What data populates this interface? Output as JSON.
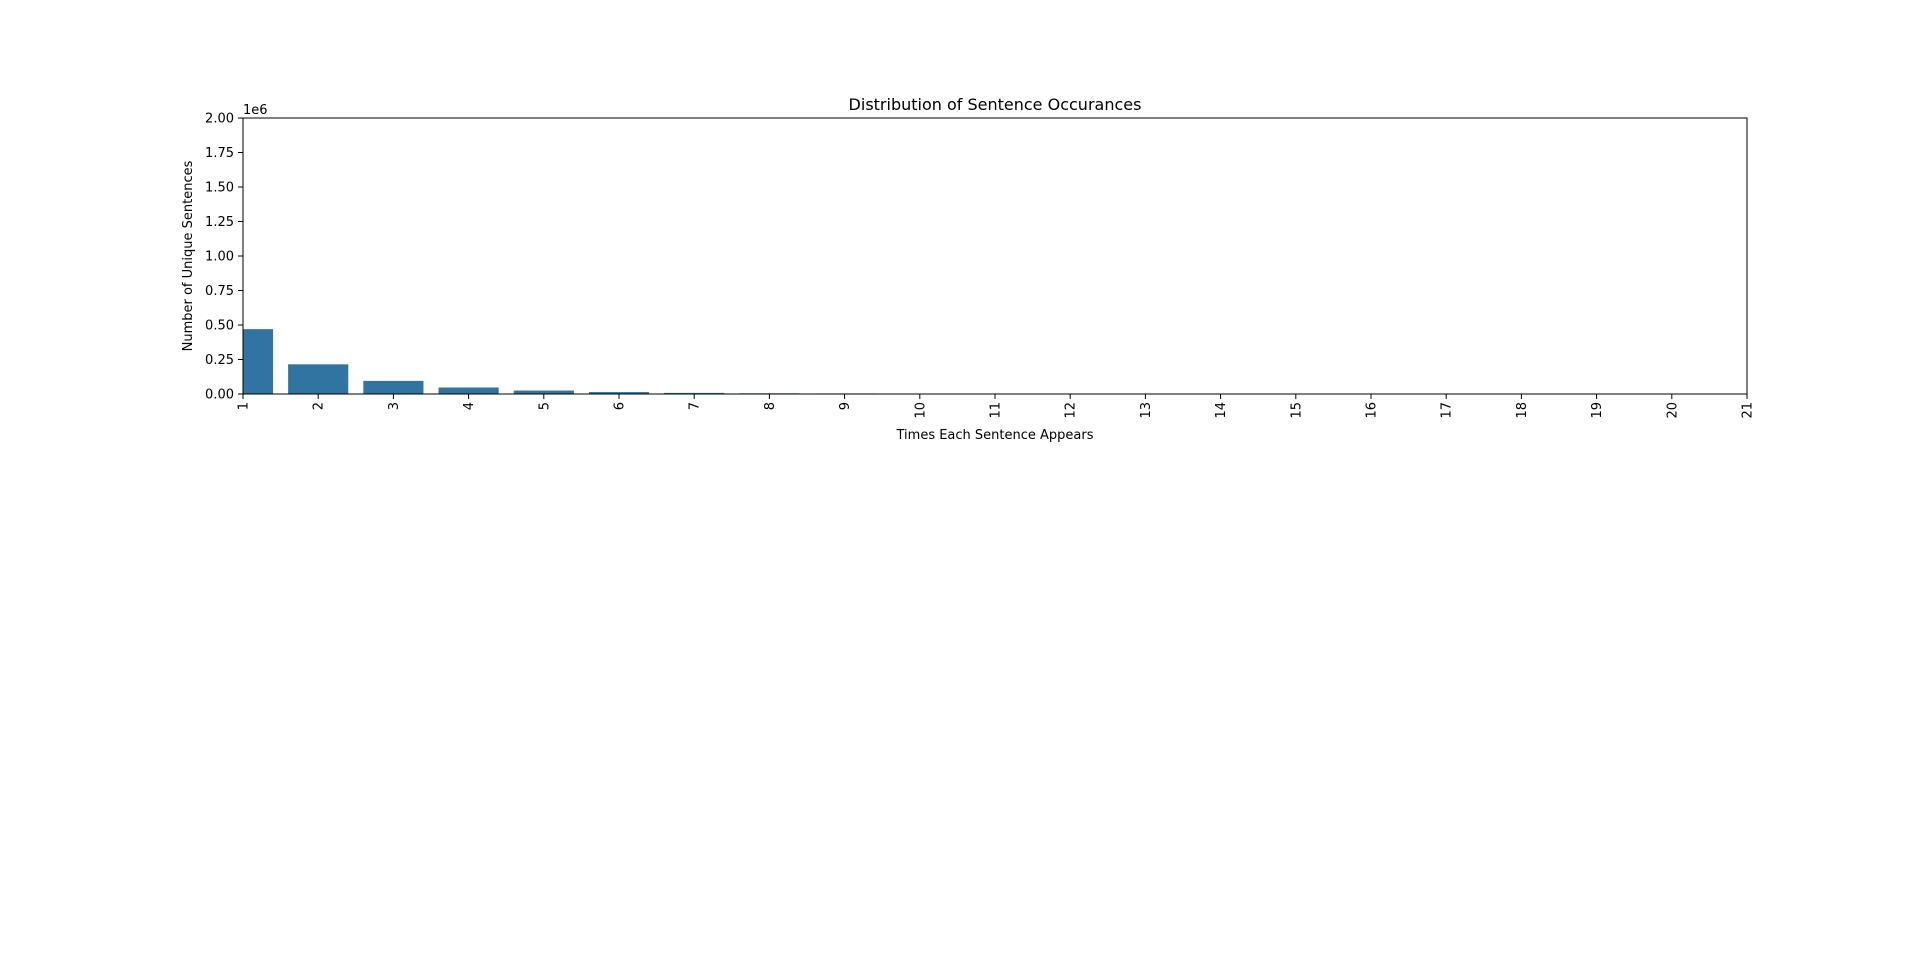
{
  "chart_data": {
    "type": "bar",
    "title": "Distribution of Sentence Occurances",
    "xlabel": "Times Each Sentence Appears",
    "ylabel": "Number of Unique Sentences",
    "y_offset_label": "1e6",
    "ylim": [
      0,
      2000000
    ],
    "y_ticks": [
      0,
      250000,
      500000,
      750000,
      1000000,
      1250000,
      1500000,
      1750000,
      2000000
    ],
    "y_tick_labels": [
      "0.00",
      "0.25",
      "0.50",
      "0.75",
      "1.00",
      "1.25",
      "1.50",
      "1.75",
      "2.00"
    ],
    "x_tick_labels": [
      "1",
      "2",
      "3",
      "4",
      "5",
      "6",
      "7",
      "8",
      "9",
      "10",
      "11",
      "12",
      "13",
      "14",
      "15",
      "16",
      "17",
      "18",
      "19",
      "20",
      "21"
    ],
    "x_tick_rotation_deg": 90,
    "categories": [
      "1",
      "2",
      "3",
      "4",
      "5",
      "6",
      "7",
      "8",
      "9",
      "10",
      "11",
      "12",
      "13",
      "14",
      "15",
      "16",
      "17",
      "18",
      "19",
      "20"
    ],
    "values": [
      470000,
      215000,
      95000,
      47000,
      25000,
      14000,
      8000,
      5000,
      4000,
      3000,
      0,
      2000,
      0,
      2000,
      0,
      0,
      0,
      0,
      0,
      0
    ],
    "bar_color": "#3274a1",
    "grid": false,
    "legend": "none"
  }
}
